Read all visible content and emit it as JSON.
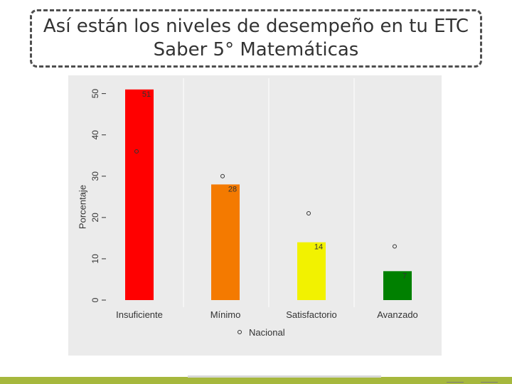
{
  "slide": {
    "title_line1": "Así están los niveles de desempeño en tu ETC",
    "title_line2": "Saber 5° Matemáticas"
  },
  "colors": {
    "panel": "#ebebeb",
    "grid": "#ffffff",
    "nacional_marker": "#333333"
  },
  "chart_data": {
    "type": "bar",
    "title": "",
    "xlabel": "",
    "ylabel": "Porcentaje",
    "ylim": [
      0,
      52
    ],
    "yticks": [
      0,
      10,
      20,
      30,
      40,
      50
    ],
    "categories": [
      "Insuficiente",
      "Mínimo",
      "Satisfactorio",
      "Avanzado"
    ],
    "series": [
      {
        "name": "ETC",
        "values": [
          51,
          28,
          14,
          7
        ],
        "value_labels": [
          "51",
          "28",
          "14",
          "7"
        ],
        "colors": [
          "#ff0000",
          "#f47a00",
          "#f2f200",
          "#008000"
        ]
      },
      {
        "name": "Nacional",
        "type": "point",
        "values": [
          36,
          30,
          21,
          13
        ]
      }
    ],
    "legend": {
      "position": "bottom",
      "entries": [
        "Nacional"
      ]
    }
  }
}
